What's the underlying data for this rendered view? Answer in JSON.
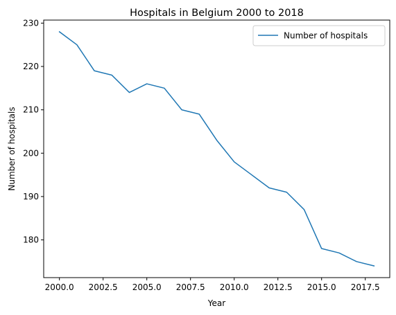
{
  "chart_data": {
    "type": "line",
    "title": "Hospitals in Belgium 2000 to 2018",
    "xlabel": "Year",
    "ylabel": "Number of hospitals",
    "x": [
      2000,
      2001,
      2002,
      2003,
      2004,
      2005,
      2006,
      2007,
      2008,
      2009,
      2010,
      2011,
      2012,
      2013,
      2014,
      2015,
      2016,
      2017,
      2018
    ],
    "series": [
      {
        "name": "Number of hospitals",
        "color": "#1f77b4",
        "values": [
          228,
          225,
          219,
          218,
          214,
          216,
          215,
          210,
          209,
          203,
          198,
          195,
          192,
          191,
          187,
          178,
          177,
          175,
          174
        ]
      }
    ],
    "xlim": [
      1999.1,
      2018.9
    ],
    "ylim": [
      171.3,
      230.7
    ],
    "xticks": [
      2000,
      2002.5,
      2005,
      2007.5,
      2010,
      2012.5,
      2015,
      2017.5
    ],
    "xtick_labels": [
      "2000.0",
      "2002.5",
      "2005.0",
      "2007.5",
      "2010.0",
      "2012.5",
      "2015.0",
      "2017.5"
    ],
    "yticks": [
      180,
      190,
      200,
      210,
      220,
      230
    ],
    "ytick_labels": [
      "180",
      "190",
      "200",
      "210",
      "220",
      "230"
    ],
    "grid": false,
    "legend_position": "upper-right"
  }
}
